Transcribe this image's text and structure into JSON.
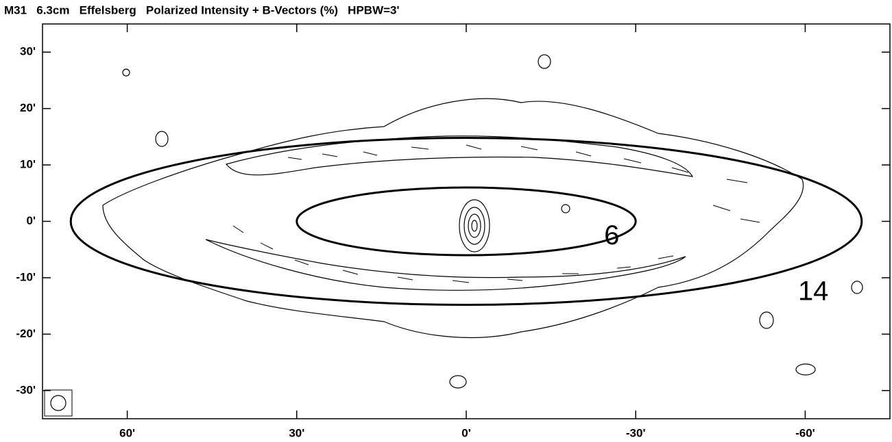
{
  "chart_data": {
    "type": "contour",
    "title": "M31   6.3cm   Effelsberg   Polarized Intensity + B-Vectors (%)   HPBW=3'",
    "xlim": [
      75,
      -75
    ],
    "ylim": [
      -35,
      35
    ],
    "xticks": [
      {
        "value": 60,
        "label": "60'"
      },
      {
        "value": 30,
        "label": "30'"
      },
      {
        "value": 0,
        "label": "0'"
      },
      {
        "value": -30,
        "label": "-30'"
      },
      {
        "value": -60,
        "label": "-60'"
      }
    ],
    "yticks": [
      {
        "value": 30,
        "label": "30'"
      },
      {
        "value": 20,
        "label": "20'"
      },
      {
        "value": 10,
        "label": "10'"
      },
      {
        "value": 0,
        "label": "0'"
      },
      {
        "value": -10,
        "label": "-10'"
      },
      {
        "value": -20,
        "label": "-20'"
      },
      {
        "value": -30,
        "label": "-30'"
      }
    ],
    "ellipses": [
      {
        "label": "6",
        "rx": 30,
        "ry": 6
      },
      {
        "label": "14",
        "rx": 70,
        "ry": 14.8
      }
    ]
  }
}
